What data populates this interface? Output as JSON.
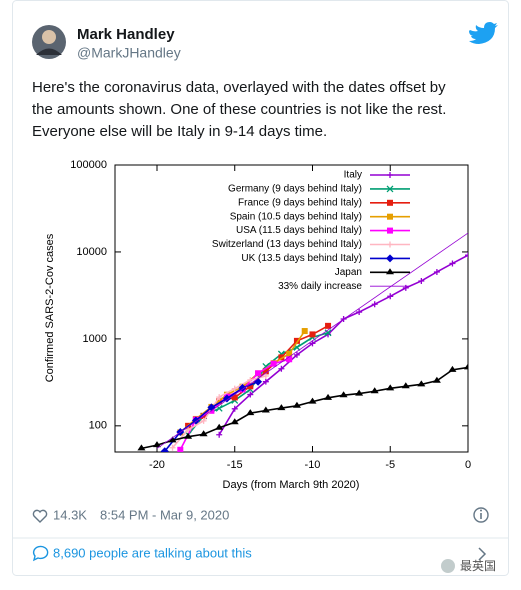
{
  "tweet": {
    "author": "Mark Handley",
    "handle": "@MarkJHandley",
    "text_lines": [
      "Here's the coronavirus data, overlayed with the dates offset by",
      "the amounts shown.  One of these countries is not like the rest.",
      "Everyone else will be Italy in 9-14 days time."
    ],
    "likes": "14.3K",
    "timestamp": "8:54 PM - Mar 9, 2020",
    "talking": "8,690 people are talking about this",
    "watermark": "最英国"
  },
  "chart_data": {
    "type": "line",
    "xlabel": "Days (from March 9th 2020)",
    "ylabel": "Confirmed SARS-2-Cov cases",
    "xlim": [
      -22.7,
      0
    ],
    "ylim": [
      50,
      100000
    ],
    "xticks": [
      -20,
      -15,
      -10,
      -5,
      0
    ],
    "yticks": [
      100,
      1000,
      10000,
      100000
    ],
    "log_y": true,
    "grid": false,
    "legend": "top-right",
    "series": [
      {
        "name": "Italy",
        "color": "#9400d3",
        "marker": "plus",
        "x": [
          -16,
          -15,
          -14,
          -13,
          -12,
          -11,
          -10,
          -9,
          -8,
          -7,
          -6,
          -5,
          -4,
          -3,
          -2,
          -1,
          0
        ],
        "values": [
          79,
          157,
          229,
          322,
          453,
          655,
          888,
          1128,
          1694,
          2036,
          2502,
          3089,
          3858,
          4636,
          5883,
          7375,
          9172
        ]
      },
      {
        "name": "Germany (9 days behind Italy)",
        "color": "#009e73",
        "marker": "cross",
        "x": [
          -18,
          -17,
          -16,
          -15,
          -14,
          -13,
          -12,
          -11,
          -10,
          -9
        ],
        "values": [
          79,
          130,
          159,
          196,
          262,
          482,
          670,
          799,
          1040,
          1176
        ]
      },
      {
        "name": "France (9 days behind Italy)",
        "color": "#e51e10",
        "marker": "square",
        "x": [
          -18,
          -17,
          -16,
          -15,
          -14,
          -13,
          -12,
          -11,
          -10,
          -9
        ],
        "values": [
          100,
          130,
          191,
          212,
          285,
          423,
          613,
          949,
          1126,
          1412
        ]
      },
      {
        "name": "Spain (10.5 days behind Italy)",
        "color": "#e69f00",
        "marker": "square",
        "x": [
          -18.5,
          -17.5,
          -16.5,
          -15.5,
          -14.5,
          -13.5,
          -12.5,
          -11.5,
          -10.5
        ],
        "values": [
          84,
          120,
          165,
          228,
          282,
          401,
          525,
          674,
          1231
        ]
      },
      {
        "name": "USA (11.5 days behind Italy)",
        "color": "#ff00ff",
        "marker": "square",
        "x": [
          -18.5,
          -17.5,
          -16.5,
          -15.5,
          -14.5,
          -13.5,
          -12.5,
          -11.5
        ],
        "values": [
          53,
          118,
          149,
          217,
          262,
          402,
          518,
          583
        ]
      },
      {
        "name": "Switzerland (13 days behind Italy)",
        "color": "#ffb6c1",
        "marker": "plus",
        "x": [
          -19,
          -18,
          -17,
          -16,
          -15,
          -14,
          -13
        ],
        "values": [
          56,
          90,
          114,
          214,
          268,
          337,
          374
        ]
      },
      {
        "name": "UK (13.5 days behind Italy)",
        "color": "#0000cd",
        "marker": "diamond",
        "x": [
          -19.5,
          -18.5,
          -17.5,
          -16.5,
          -15.5,
          -14.5,
          -13.5
        ],
        "values": [
          51,
          85,
          115,
          163,
          206,
          273,
          321
        ]
      },
      {
        "name": "Japan",
        "color": "#000000",
        "marker": "triangle",
        "x": [
          -21,
          -20,
          -19,
          -18,
          -17,
          -16,
          -15,
          -14,
          -13,
          -12,
          -11,
          -10,
          -9,
          -8,
          -7,
          -6,
          -5,
          -4,
          -3,
          -2,
          -1,
          0
        ],
        "values": [
          55,
          60,
          68,
          75,
          80,
          95,
          110,
          140,
          150,
          160,
          170,
          190,
          210,
          225,
          235,
          250,
          270,
          285,
          300,
          330,
          440,
          470
        ]
      },
      {
        "name": "33% daily increase",
        "color": "#9400d3",
        "marker": "none",
        "x": [
          -20,
          0
        ],
        "values": [
          55,
          16500
        ]
      }
    ]
  }
}
